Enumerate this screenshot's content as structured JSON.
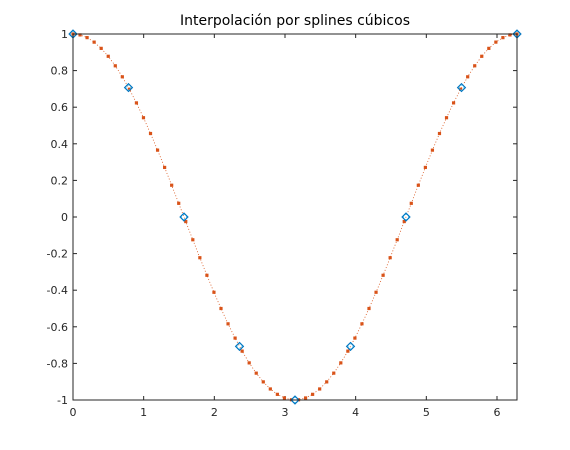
{
  "chart_data": {
    "type": "scatter",
    "title": "Interpolación por splines cúbicos",
    "xlabel": "",
    "ylabel": "",
    "xlim": [
      0,
      6.2832
    ],
    "ylim": [
      -1,
      1
    ],
    "grid": false,
    "x_ticks": [
      {
        "value": 0,
        "label": "0"
      },
      {
        "value": 1,
        "label": "1"
      },
      {
        "value": 2,
        "label": "2"
      },
      {
        "value": 3,
        "label": "3"
      },
      {
        "value": 4,
        "label": "4"
      },
      {
        "value": 5,
        "label": "5"
      },
      {
        "value": 6,
        "label": "6"
      }
    ],
    "y_ticks": [
      {
        "value": -1,
        "label": "-1"
      },
      {
        "value": -0.8,
        "label": "-0.8"
      },
      {
        "value": -0.6,
        "label": "-0.6"
      },
      {
        "value": -0.4,
        "label": "-0.4"
      },
      {
        "value": -0.2,
        "label": "-0.2"
      },
      {
        "value": 0,
        "label": "0"
      },
      {
        "value": 0.2,
        "label": "0.2"
      },
      {
        "value": 0.4,
        "label": "0.4"
      },
      {
        "value": 0.6,
        "label": "0.6"
      },
      {
        "value": 0.8,
        "label": "0.8"
      },
      {
        "value": 1,
        "label": "1"
      }
    ],
    "series": [
      {
        "marker": "diamond",
        "color": "#0072bd",
        "x": [
          0,
          0.7854,
          1.5708,
          2.3562,
          3.1416,
          3.927,
          4.7124,
          5.4978,
          6.2832
        ],
        "y": [
          1,
          0.7071,
          0,
          -0.7071,
          -1,
          -0.7071,
          0,
          0.7071,
          1
        ]
      },
      {
        "marker": "circle",
        "color": "#4dbeee",
        "x": [
          0,
          0.7854,
          1.5708,
          2.3562,
          3.1416,
          3.927,
          4.7124,
          5.4978,
          6.2832
        ],
        "y": [
          1,
          0.7071,
          0,
          -0.7071,
          -1,
          -0.7071,
          0,
          0.7071,
          1
        ]
      },
      {
        "marker": "dotted-line",
        "color": "#d95319",
        "x_start": 0,
        "x_end": 6.2832,
        "point_count": 64,
        "function": "cos"
      }
    ]
  }
}
